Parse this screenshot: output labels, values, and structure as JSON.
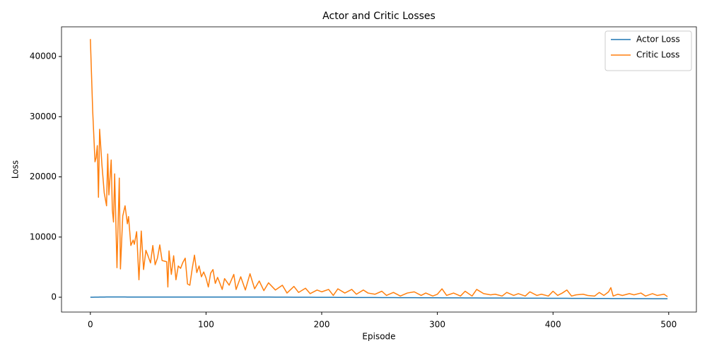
{
  "chart_data": {
    "type": "line",
    "title": "Actor and Critic Losses",
    "x_label": "Episode",
    "y_label": "Loss",
    "x": [
      0,
      2,
      4,
      5,
      6,
      7,
      8,
      10,
      12,
      14,
      15,
      16,
      18,
      19,
      20,
      21,
      23,
      25,
      26,
      28,
      30,
      32,
      33,
      35,
      37,
      38,
      40,
      42,
      44,
      46,
      48,
      50,
      52,
      54,
      56,
      58,
      60,
      62,
      66,
      67,
      68,
      70,
      72,
      74,
      76,
      78,
      80,
      82,
      84,
      86,
      88,
      90,
      92,
      94,
      96,
      98,
      100,
      102,
      104,
      106,
      108,
      110,
      114,
      116,
      120,
      124,
      126,
      130,
      134,
      138,
      142,
      146,
      150,
      154,
      160,
      166,
      170,
      176,
      180,
      186,
      190,
      196,
      200,
      206,
      210,
      214,
      220,
      226,
      230,
      236,
      240,
      246,
      252,
      256,
      262,
      268,
      274,
      280,
      286,
      290,
      296,
      300,
      304,
      308,
      314,
      320,
      324,
      330,
      334,
      340,
      346,
      350,
      356,
      360,
      366,
      370,
      376,
      380,
      386,
      390,
      396,
      400,
      404,
      408,
      412,
      416,
      420,
      426,
      430,
      436,
      440,
      444,
      448,
      450,
      452,
      456,
      460,
      466,
      470,
      476,
      480,
      486,
      490,
      496,
      499
    ],
    "series": [
      {
        "name": "Actor Loss",
        "color": "#1f77b4",
        "values": [
          0,
          10,
          20,
          20,
          25,
          25,
          30,
          35,
          40,
          45,
          45,
          45,
          50,
          50,
          50,
          50,
          50,
          50,
          50,
          50,
          45,
          40,
          40,
          35,
          30,
          30,
          30,
          30,
          30,
          30,
          30,
          30,
          30,
          30,
          30,
          30,
          30,
          30,
          30,
          30,
          30,
          30,
          30,
          30,
          30,
          30,
          30,
          30,
          30,
          30,
          30,
          30,
          30,
          30,
          30,
          30,
          30,
          30,
          30,
          30,
          30,
          30,
          30,
          30,
          30,
          30,
          30,
          30,
          30,
          30,
          30,
          30,
          30,
          27,
          22,
          17,
          14,
          9,
          6,
          1,
          -2,
          -7,
          -10,
          -15,
          -18,
          -21,
          -26,
          -31,
          -34,
          -39,
          -42,
          -47,
          -52,
          -55,
          -60,
          -64,
          -69,
          -74,
          -79,
          -82,
          -87,
          -90,
          -93,
          -96,
          -101,
          -106,
          -109,
          -114,
          -117,
          -122,
          -127,
          -130,
          -135,
          -138,
          -143,
          -146,
          -151,
          -154,
          -159,
          -162,
          -167,
          -170,
          -173,
          -176,
          -180,
          -183,
          -186,
          -191,
          -194,
          -199,
          -202,
          -205,
          -208,
          -210,
          -212,
          -215,
          -218,
          -223,
          -226,
          -231,
          -234,
          -239,
          -242,
          -247,
          -249
        ]
      },
      {
        "name": "Critic Loss",
        "color": "#ff7f0e",
        "values": [
          42900,
          31000,
          22500,
          23200,
          25200,
          16600,
          27900,
          22000,
          17300,
          15200,
          23800,
          17000,
          22800,
          14500,
          12500,
          20500,
          4900,
          19800,
          4700,
          13500,
          15200,
          12200,
          13400,
          8600,
          9500,
          8800,
          10900,
          2900,
          11000,
          4600,
          7800,
          6800,
          5700,
          8600,
          5400,
          6500,
          8700,
          6100,
          5900,
          1700,
          7700,
          3800,
          6900,
          2900,
          5200,
          4800,
          5800,
          6500,
          2200,
          2000,
          4700,
          7000,
          4100,
          5200,
          3400,
          4200,
          3200,
          1700,
          4000,
          4600,
          2300,
          3300,
          1300,
          3100,
          2000,
          3800,
          1300,
          3400,
          1200,
          3900,
          1400,
          2700,
          1100,
          2400,
          1200,
          2000,
          700,
          1800,
          800,
          1500,
          600,
          1200,
          900,
          1300,
          300,
          1400,
          700,
          1300,
          500,
          1200,
          700,
          500,
          1000,
          300,
          800,
          200,
          700,
          900,
          300,
          700,
          200,
          500,
          1400,
          300,
          700,
          200,
          1000,
          200,
          1300,
          600,
          400,
          500,
          200,
          800,
          300,
          600,
          200,
          900,
          300,
          500,
          200,
          1000,
          300,
          700,
          1200,
          200,
          400,
          500,
          300,
          200,
          800,
          300,
          900,
          1600,
          200,
          500,
          300,
          600,
          400,
          700,
          200,
          600,
          300,
          500,
          100
        ]
      }
    ],
    "xlim": [
      -24.95,
      523.95
    ],
    "ylim": [
      -2460,
      44930
    ],
    "xticks": [
      0,
      100,
      200,
      300,
      400,
      500
    ],
    "yticks": [
      0,
      10000,
      20000,
      30000,
      40000
    ],
    "grid": false,
    "legend": "upper right"
  }
}
